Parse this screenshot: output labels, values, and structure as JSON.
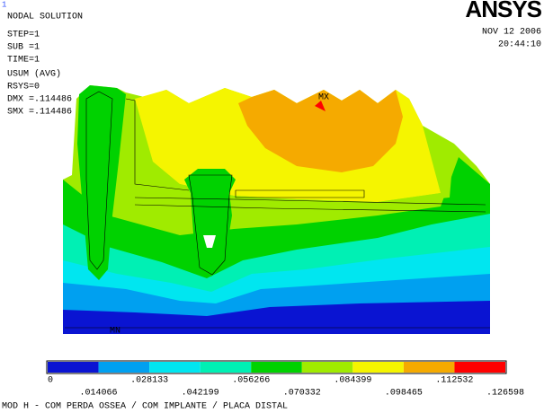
{
  "window_number": "1",
  "header": {
    "title": "NODAL SOLUTION",
    "lines": [
      "STEP=1",
      "SUB =1",
      "TIME=1",
      "USUM     (AVG)",
      "RSYS=0",
      "DMX =.114486",
      "SMX =.114486"
    ]
  },
  "logo": "ANSYS",
  "date": "NOV 12 2006",
  "time": "20:44:10",
  "plot": {
    "max_label": "MX",
    "min_label": "MN"
  },
  "legend": {
    "colors": [
      "#0a14d2",
      "#00a0f0",
      "#00e6f0",
      "#00f0b4",
      "#00d200",
      "#a0eb00",
      "#f5f500",
      "#f5aa00",
      "#ff0000"
    ],
    "labels": [
      "0",
      ".014066",
      ".028133",
      ".042199",
      ".056266",
      ".070332",
      ".084399",
      ".098465",
      ".112532",
      ".126598"
    ]
  },
  "footer": "MOD H - COM PERDA OSSEA / COM IMPLANTE / PLACA DISTAL"
}
